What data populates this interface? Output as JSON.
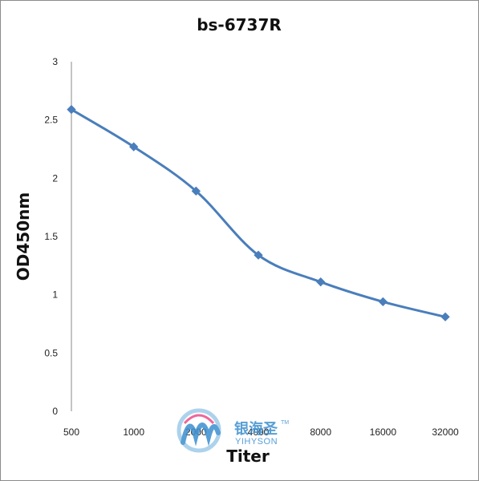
{
  "chart_data": {
    "type": "line",
    "title": "bs-6737R",
    "xlabel": "Titer",
    "ylabel": "OD450nm",
    "categories": [
      "500",
      "1000",
      "2000",
      "4000",
      "8000",
      "16000",
      "32000"
    ],
    "series": [
      {
        "values": [
          2.59,
          2.27,
          1.89,
          1.34,
          1.11,
          0.94,
          0.81
        ]
      }
    ],
    "ylim": [
      0,
      3
    ],
    "yticks": [
      "0",
      "0.5",
      "1",
      "1.5",
      "2",
      "2.5",
      "3"
    ],
    "grid": false,
    "legend": "none",
    "line_color": "#4a7ebb"
  },
  "watermark": {
    "chinese": "银海圣",
    "english": "YIHYSON",
    "tm": "TM"
  }
}
